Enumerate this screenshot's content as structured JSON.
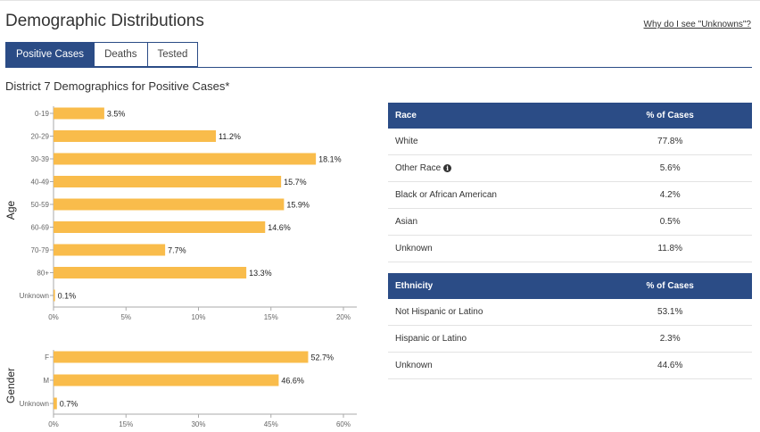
{
  "header": {
    "title": "Demographic Distributions",
    "help_link": "Why do I see \"Unknowns\"?"
  },
  "tabs": [
    {
      "label": "Positive Cases",
      "active": true
    },
    {
      "label": "Deaths",
      "active": false
    },
    {
      "label": "Tested",
      "active": false
    }
  ],
  "subtitle": "District 7 Demographics for Positive Cases*",
  "colors": {
    "bar": "#f9bc4b",
    "header": "#2b4c86",
    "axis": "#aaaaaa"
  },
  "chart_data": [
    {
      "type": "bar",
      "orientation": "horizontal",
      "ylabel": "Age",
      "categories": [
        "0-19",
        "20-29",
        "30-39",
        "40-49",
        "50-59",
        "60-69",
        "70-79",
        "80+",
        "Unknown"
      ],
      "values": [
        3.5,
        11.2,
        18.1,
        15.7,
        15.9,
        14.6,
        7.7,
        13.3,
        0.1
      ],
      "value_labels": [
        "3.5%",
        "11.2%",
        "18.1%",
        "15.7%",
        "15.9%",
        "14.6%",
        "7.7%",
        "13.3%",
        "0.1%"
      ],
      "xlim": [
        0,
        20
      ],
      "xticks": [
        0,
        5,
        10,
        15,
        20
      ],
      "xtick_labels": [
        "0%",
        "5%",
        "10%",
        "15%",
        "20%"
      ]
    },
    {
      "type": "bar",
      "orientation": "horizontal",
      "ylabel": "Gender",
      "categories": [
        "F",
        "M",
        "Unknown"
      ],
      "values": [
        52.7,
        46.6,
        0.7
      ],
      "value_labels": [
        "52.7%",
        "46.6%",
        "0.7%"
      ],
      "xlim": [
        0,
        60
      ],
      "xticks": [
        0,
        15,
        30,
        45,
        60
      ],
      "xtick_labels": [
        "0%",
        "15%",
        "30%",
        "45%",
        "60%"
      ]
    }
  ],
  "race_table": {
    "headers": [
      "Race",
      "% of Cases"
    ],
    "rows": [
      {
        "label": "White",
        "value": "77.8%",
        "info": false
      },
      {
        "label": "Other Race",
        "value": "5.6%",
        "info": true,
        "info_icon": "info-icon"
      },
      {
        "label": "Black or African American",
        "value": "4.2%",
        "info": false
      },
      {
        "label": "Asian",
        "value": "0.5%",
        "info": false
      },
      {
        "label": "Unknown",
        "value": "11.8%",
        "info": false
      }
    ]
  },
  "ethnicity_table": {
    "headers": [
      "Ethnicity",
      "% of Cases"
    ],
    "rows": [
      {
        "label": "Not Hispanic or Latino",
        "value": "53.1%"
      },
      {
        "label": "Hispanic or Latino",
        "value": "2.3%"
      },
      {
        "label": "Unknown",
        "value": "44.6%"
      }
    ]
  }
}
